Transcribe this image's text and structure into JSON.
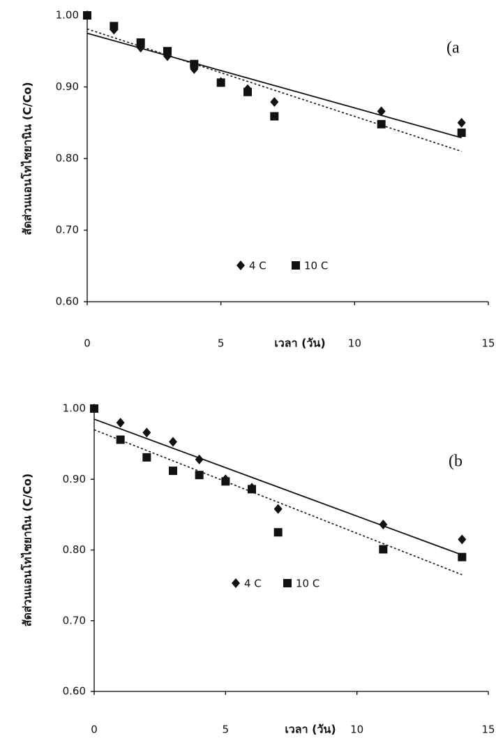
{
  "chart_data": [
    {
      "type": "scatter",
      "annotation": "(a",
      "x_label": "เวลา (วัน)",
      "y_label": "สัดส่วนแอนโทไซยานิน (C/Co)",
      "xlim": [
        0,
        15
      ],
      "xticks": [
        0,
        5,
        10,
        15
      ],
      "ylim": [
        0.6,
        1.0
      ],
      "yticks": [
        {
          "value": 0.6,
          "label": "0.60"
        },
        {
          "value": 0.7,
          "label": "0.70"
        },
        {
          "value": 0.8,
          "label": "0.80"
        },
        {
          "value": 0.9,
          "label": "0.90"
        },
        {
          "value": 1.0,
          "label": "1.00"
        }
      ],
      "series": [
        {
          "name": "4 C",
          "marker": "diamond",
          "color": "#111111",
          "x": [
            0,
            1,
            2,
            3,
            4,
            5,
            6,
            7,
            11,
            14
          ],
          "values": [
            1.0,
            0.98,
            0.955,
            0.943,
            0.925,
            0.907,
            0.897,
            0.879,
            0.866,
            0.85
          ],
          "fit": {
            "x": [
              0,
              14
            ],
            "values": [
              0.975,
              0.829
            ],
            "dash": "solid"
          }
        },
        {
          "name": "10 C",
          "marker": "square",
          "color": "#111111",
          "x": [
            0,
            1,
            2,
            3,
            4,
            5,
            6,
            7,
            11,
            14
          ],
          "values": [
            1.0,
            0.985,
            0.962,
            0.95,
            0.932,
            0.906,
            0.893,
            0.859,
            0.848,
            0.836
          ],
          "fit": {
            "x": [
              0,
              14
            ],
            "values": [
              0.981,
              0.81
            ],
            "dash": "dotted"
          }
        }
      ]
    },
    {
      "type": "scatter",
      "annotation": "(b",
      "x_label": "เวลา (วัน)",
      "y_label": "สัดส่วนแอนโทไซยานิน (C/Co)",
      "xlim": [
        0,
        15
      ],
      "xticks": [
        0,
        5,
        10,
        15
      ],
      "ylim": [
        0.6,
        1.0
      ],
      "yticks": [
        {
          "value": 0.6,
          "label": "0.60"
        },
        {
          "value": 0.7,
          "label": "0.70"
        },
        {
          "value": 0.8,
          "label": "0.80"
        },
        {
          "value": 0.9,
          "label": "0.90"
        },
        {
          "value": 1.0,
          "label": "1.00"
        }
      ],
      "series": [
        {
          "name": "4 C",
          "marker": "diamond",
          "color": "#111111",
          "x": [
            0,
            1,
            2,
            3,
            4,
            5,
            6,
            7,
            11,
            14
          ],
          "values": [
            1.0,
            0.98,
            0.966,
            0.953,
            0.928,
            0.9,
            0.888,
            0.858,
            0.836,
            0.815
          ],
          "fit": {
            "x": [
              0,
              14
            ],
            "values": [
              0.985,
              0.793
            ],
            "dash": "solid"
          }
        },
        {
          "name": "10 C",
          "marker": "square",
          "color": "#111111",
          "x": [
            0,
            1,
            2,
            3,
            4,
            5,
            6,
            7,
            11,
            14
          ],
          "values": [
            1.0,
            0.956,
            0.931,
            0.912,
            0.906,
            0.897,
            0.886,
            0.825,
            0.801,
            0.79
          ],
          "fit": {
            "x": [
              0,
              14
            ],
            "values": [
              0.97,
              0.765
            ],
            "dash": "dotted"
          }
        }
      ]
    }
  ]
}
